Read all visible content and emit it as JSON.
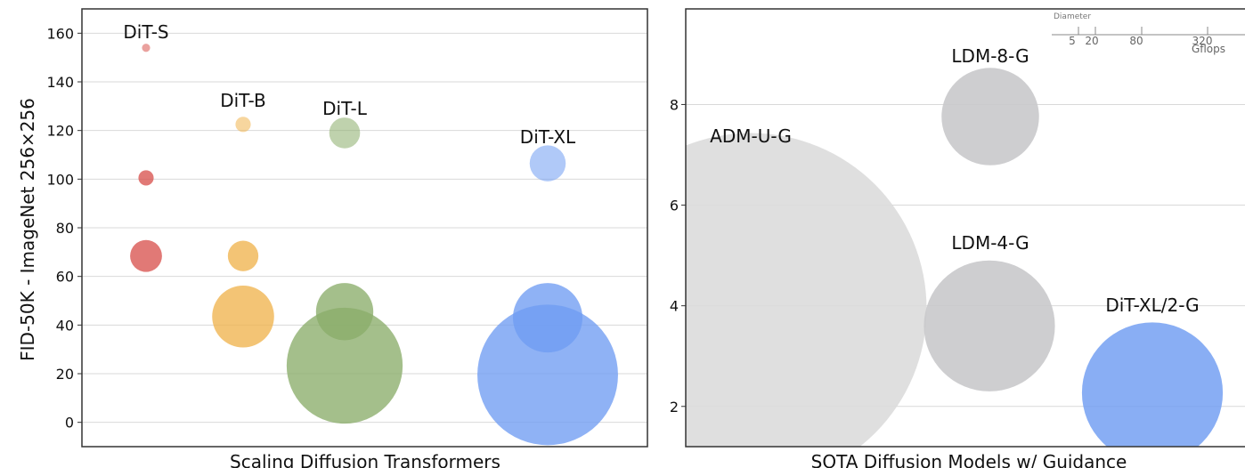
{
  "chart_data": [
    {
      "type": "scatter",
      "subtype": "bubble",
      "title": "Scaling Diffusion Transformers",
      "xlabel": "",
      "ylabel": "FID-50K - ImageNet 256×256",
      "ylim": [
        -10,
        170
      ],
      "yticks": [
        0,
        20,
        40,
        60,
        80,
        100,
        120,
        140,
        160
      ],
      "grid": true,
      "groups": [
        {
          "name": "DiT-S",
          "color": "#d9534f",
          "points": [
            {
              "y": 154,
              "gflops": 0.4
            },
            {
              "y": 100.5,
              "gflops": 1.4
            },
            {
              "y": 68.4,
              "gflops": 6.1
            }
          ]
        },
        {
          "name": "DiT-B",
          "color": "#f0b44e",
          "points": [
            {
              "y": 122.5,
              "gflops": 1.4
            },
            {
              "y": 68.4,
              "gflops": 5.6
            },
            {
              "y": 43.5,
              "gflops": 23
            }
          ]
        },
        {
          "name": "DiT-L",
          "color": "#8aad6a",
          "points": [
            {
              "y": 119,
              "gflops": 5.7
            },
            {
              "y": 45.5,
              "gflops": 19.7
            },
            {
              "y": 23.3,
              "gflops": 80.7
            }
          ]
        },
        {
          "name": "DiT-XL",
          "color": "#6f9cf2",
          "points": [
            {
              "y": 106.5,
              "gflops": 7.8
            },
            {
              "y": 43,
              "gflops": 29
            },
            {
              "y": 19.5,
              "gflops": 118.6
            }
          ]
        }
      ]
    },
    {
      "type": "scatter",
      "subtype": "bubble",
      "title": "SOTA Diffusion Models w/ Guidance",
      "xlabel": "",
      "ylabel": "",
      "ylim": [
        1.2,
        9.9
      ],
      "yticks": [
        2,
        4,
        6,
        8
      ],
      "grid": true,
      "points": [
        {
          "name": "ADM-U-G",
          "y": 3.94,
          "gflops": 742,
          "color": "#dcdcdc"
        },
        {
          "name": "LDM-8-G",
          "y": 7.76,
          "gflops": 57,
          "color": "#c9c9cb"
        },
        {
          "name": "LDM-4-G",
          "y": 3.6,
          "gflops": 103,
          "color": "#c9c9cb"
        },
        {
          "name": "DiT-XL/2-G",
          "y": 2.27,
          "gflops": 119,
          "color": "#6f9cf2"
        }
      ],
      "size_legend": {
        "title": "Diameter",
        "values": [
          "5",
          "20",
          "80",
          "320"
        ],
        "unit": "Gflops"
      }
    }
  ]
}
